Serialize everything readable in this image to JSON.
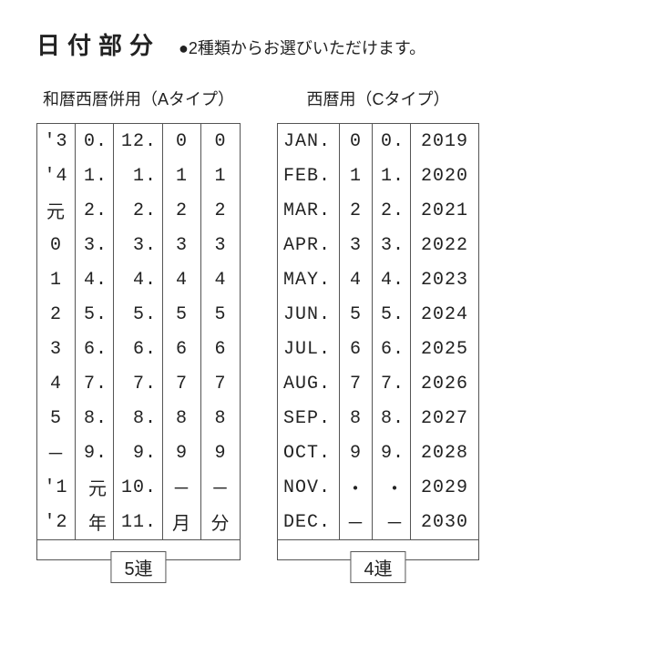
{
  "header": {
    "title": "日付部分",
    "subtitle": "●2種類からお選びいただけます。"
  },
  "tableA": {
    "label": "和暦西暦併用（Aタイプ）",
    "bracket": "5連",
    "columns": [
      [
        "'3",
        "'4",
        "元",
        "0",
        "1",
        "2",
        "3",
        "4",
        "5",
        "－",
        "'1",
        "'2"
      ],
      [
        "0.",
        "1.",
        "2.",
        "3.",
        "4.",
        "5.",
        "6.",
        "7.",
        "8.",
        "9.",
        "元",
        "年"
      ],
      [
        "12.",
        "1.",
        "2.",
        "3.",
        "4.",
        "5.",
        "6.",
        "7.",
        "8.",
        "9.",
        "10.",
        "11."
      ],
      [
        "0",
        "1",
        "2",
        "3",
        "4",
        "5",
        "6",
        "7",
        "8",
        "9",
        "－",
        "月"
      ],
      [
        "0",
        "1",
        "2",
        "3",
        "4",
        "5",
        "6",
        "7",
        "8",
        "9",
        "－",
        "分"
      ]
    ]
  },
  "tableC": {
    "label": "西暦用（Cタイプ）",
    "bracket": "4連",
    "columns": [
      [
        "JAN.",
        "FEB.",
        "MAR.",
        "APR.",
        "MAY.",
        "JUN.",
        "JUL.",
        "AUG.",
        "SEP.",
        "OCT.",
        "NOV.",
        "DEC."
      ],
      [
        "0",
        "1",
        "2",
        "3",
        "4",
        "5",
        "6",
        "7",
        "8",
        "9",
        "・",
        "－"
      ],
      [
        "0.",
        "1.",
        "2.",
        "3.",
        "4.",
        "5.",
        "6.",
        "7.",
        "8.",
        "9.",
        "・",
        "－"
      ],
      [
        "2019",
        "2020",
        "2021",
        "2022",
        "2023",
        "2024",
        "2025",
        "2026",
        "2027",
        "2028",
        "2029",
        "2030"
      ]
    ]
  }
}
